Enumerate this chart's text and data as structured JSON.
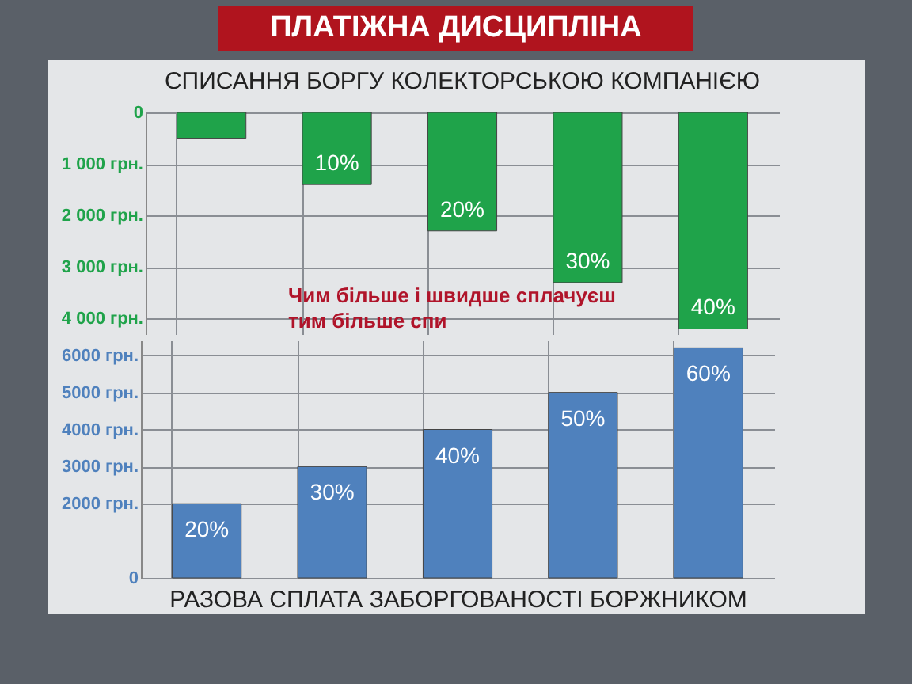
{
  "chart_data": [
    {
      "type": "bar",
      "title": "ПЛАТІЖНА ДИСЦИПЛІНА",
      "subtitle": "СПИСАННЯ БОРГУ КОЛЕКТОРСЬКОЮ КОМПАНІЄЮ",
      "categories": [
        null,
        null,
        null,
        null,
        null
      ],
      "values": [
        500,
        1400,
        2300,
        3300,
        4200
      ],
      "color": "#1fa34a",
      "ylim": [
        4300,
        0
      ],
      "yticks": [
        0,
        {
          "value": 1000,
          "label": "1 000 грн."
        },
        {
          "value": 2000,
          "label": "2 000 грн."
        },
        {
          "value": 3000,
          "label": "3 000 грн."
        },
        {
          "value": 4000,
          "label": "4 000 грн."
        }
      ],
      "grid": true,
      "annotations": [
        "Чим більше і швидше сплачуєш тим більше спи",
        {
          "text": "10%",
          "y": 1400
        },
        {
          "text": "20%",
          "y": 2300
        },
        {
          "text": "30%",
          "y": 3300
        },
        {
          "text": "40%",
          "y": 4200
        }
      ]
    },
    {
      "type": "bar",
      "xlabel": "РАЗОВА СПЛАТА ЗАБОРГОВАНОСТІ БОРЖНИКОМ",
      "categories": [
        null,
        null,
        null,
        null,
        null
      ],
      "values": [
        2000,
        3000,
        4000,
        5000,
        6200
      ],
      "color": "#4f81bd",
      "ylim": [
        0,
        6400
      ],
      "yticks": [
        0,
        {
          "value": 2000,
          "label": "2000 грн."
        },
        {
          "value": 3000,
          "label": "3000 грн."
        },
        {
          "value": 4000,
          "label": "4000 грн."
        },
        {
          "value": 5000,
          "label": "5000 грн."
        },
        {
          "value": 6000,
          "label": "6000 грн."
        }
      ],
      "grid": true,
      "annotations": [
        {
          "text": "20%",
          "y": 2000
        },
        {
          "text": "30%",
          "y": 3000
        },
        {
          "text": "40%",
          "y": 4000
        },
        {
          "text": "50%",
          "y": 5000
        },
        {
          "text": "60%",
          "y": 6200
        }
      ]
    }
  ]
}
